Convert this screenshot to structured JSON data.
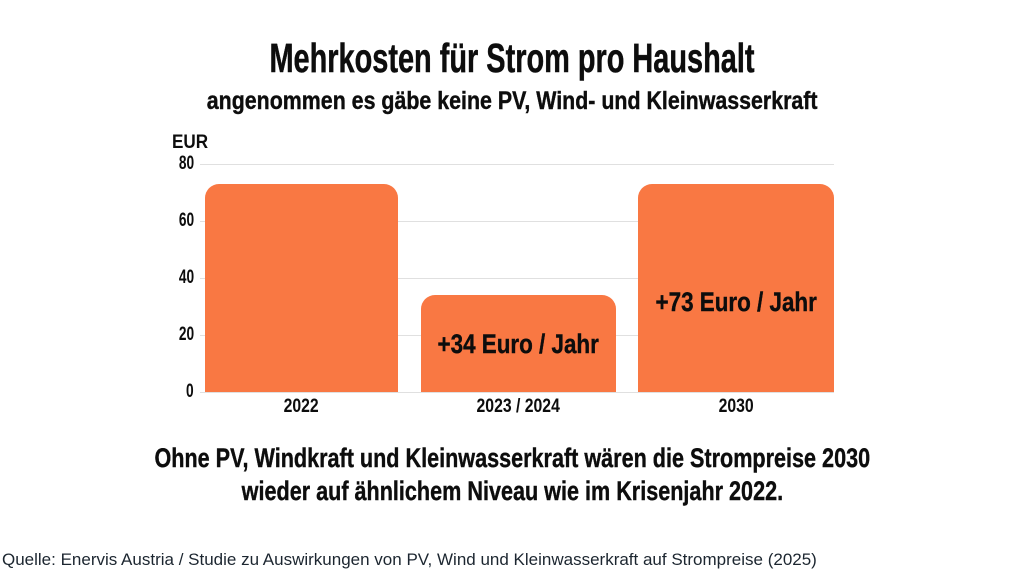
{
  "header": {
    "title": "Mehrkosten für Strom pro Haushalt",
    "subtitle": "angenommen es gäbe keine PV, Wind- und Kleinwasserkraft"
  },
  "chart_data": {
    "type": "bar",
    "title": "Mehrkosten für Strom pro Haushalt",
    "subtitle": "angenommen es gäbe keine PV, Wind- und Kleinwasserkraft",
    "categories": [
      "2022",
      "2023 / 2024",
      "2030"
    ],
    "values": [
      73,
      34,
      73
    ],
    "bar_labels": [
      "",
      "+34 Euro / Jahr",
      "+73 Euro / Jahr"
    ],
    "ylabel": "EUR",
    "xlabel": "",
    "ylim": [
      0,
      80
    ],
    "yticks": [
      0,
      20,
      40,
      60,
      80
    ],
    "grid": "horizontal",
    "legend": "none",
    "bar_color": "#F97843"
  },
  "caption": {
    "line1": "Ohne PV, Windkraft und Kleinwasserkraft wären die Strompreise 2030",
    "line2": "wieder auf ähnlichem Niveau wie im Krisenjahr 2022."
  },
  "source": {
    "text": "Quelle: Enervis Austria / Studie zu Auswirkungen von PV, Wind und Kleinwasserkraft auf Strompreise (2025)"
  },
  "colors": {
    "bar": "#F97843",
    "grid": "#E0E0E0",
    "text": "#0D0D0D",
    "source_text": "#1C2630",
    "background": "#FFFFFF"
  }
}
